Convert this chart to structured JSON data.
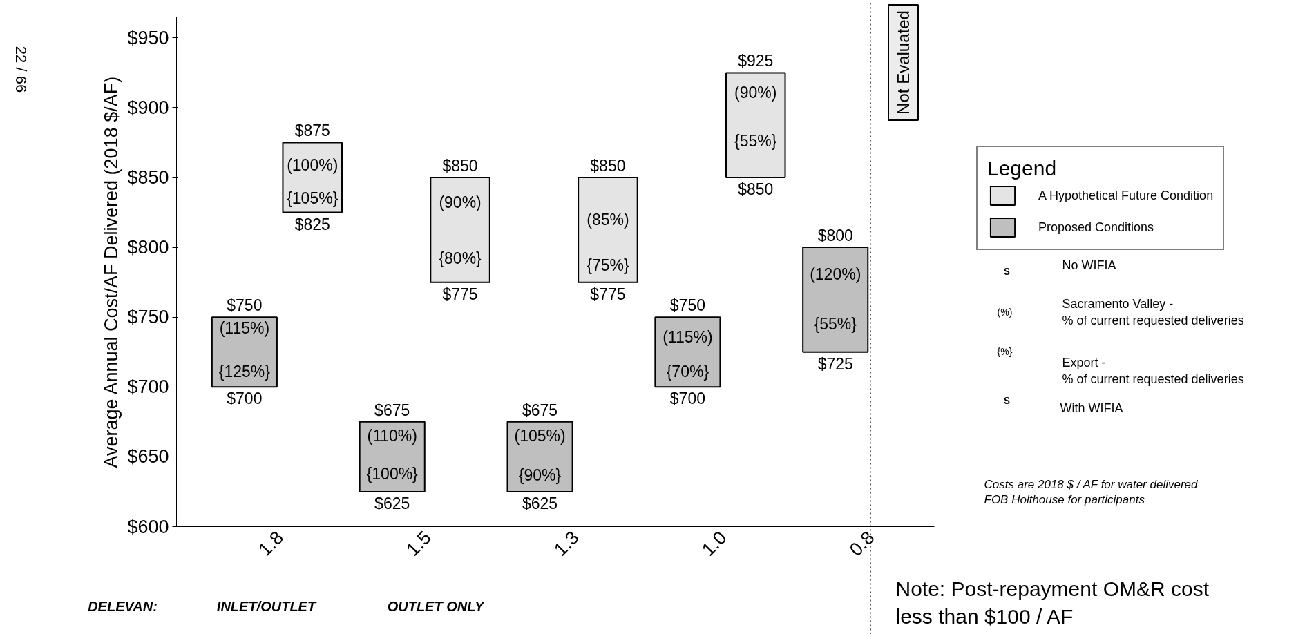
{
  "chart_data": {
    "type": "bar",
    "ylabel": "Average Annual Cost/AF Delivered (2018 $/AF)",
    "legend_title": "Legend",
    "categories": [
      "1.8",
      "1.5",
      "1.3",
      "1.0",
      "0.8"
    ],
    "series": [
      {
        "name": "A Hypothetical Future Condition",
        "color": "#e4e4e4",
        "base": [
          825,
          775,
          775,
          850,
          null
        ],
        "values": [
          50,
          75,
          75,
          75,
          null
        ]
      },
      {
        "name": "Proposed Conditions",
        "color": "#bfbfbf",
        "base": [
          700,
          625,
          625,
          700,
          725
        ],
        "values": [
          50,
          50,
          50,
          50,
          75
        ]
      }
    ],
    "ylim": [
      600,
      965
    ],
    "yticks": [
      {
        "value": 600,
        "label": "$600"
      },
      {
        "value": 650,
        "label": "$650"
      },
      {
        "value": 700,
        "label": "$700"
      },
      {
        "value": 750,
        "label": "$750"
      },
      {
        "value": 800,
        "label": "$800"
      },
      {
        "value": 850,
        "label": "$850"
      },
      {
        "value": 900,
        "label": "$900"
      },
      {
        "value": 950,
        "label": "$950"
      }
    ],
    "grid": "x",
    "legend": "right",
    "annotations": [
      {
        "text": "$750",
        "x": "1.8",
        "y": 750
      },
      {
        "text": "(115%)",
        "x": "1.8",
        "y": 742
      },
      {
        "text": "{125%}",
        "x": "1.8",
        "y": 711
      },
      {
        "text": "$700",
        "x": "1.8",
        "y": 700
      },
      {
        "text": "$875",
        "x": "1.8",
        "y": 875
      },
      {
        "text": "(100%)",
        "x": "1.8",
        "y": 859
      },
      {
        "text": "{105%}",
        "x": "1.8",
        "y": 835
      },
      {
        "text": "$825",
        "x": "1.8",
        "y": 825
      },
      {
        "text": "$675",
        "x": "1.5",
        "y": 675
      },
      {
        "text": "(110%)",
        "x": "1.5",
        "y": 665
      },
      {
        "text": "{100%}",
        "x": "1.5",
        "y": 638
      },
      {
        "text": "$625",
        "x": "1.5",
        "y": 625
      },
      {
        "text": "$850",
        "x": "1.5",
        "y": 850
      },
      {
        "text": "(90%)",
        "x": "1.5",
        "y": 832
      },
      {
        "text": "{80%}",
        "x": "1.5",
        "y": 792
      },
      {
        "text": "$775",
        "x": "1.5",
        "y": 775
      },
      {
        "text": "$675",
        "x": "1.3",
        "y": 675
      },
      {
        "text": "(105%)",
        "x": "1.3",
        "y": 665
      },
      {
        "text": "{90%}",
        "x": "1.3",
        "y": 637
      },
      {
        "text": "$625",
        "x": "1.3",
        "y": 625
      },
      {
        "text": "$850",
        "x": "1.3",
        "y": 850
      },
      {
        "text": "(85%)",
        "x": "1.3",
        "y": 820
      },
      {
        "text": "{75%}",
        "x": "1.3",
        "y": 787
      },
      {
        "text": "$775",
        "x": "1.3",
        "y": 775
      },
      {
        "text": "$750",
        "x": "1.0",
        "y": 750
      },
      {
        "text": "(115%)",
        "x": "1.0",
        "y": 736
      },
      {
        "text": "{70%}",
        "x": "1.0",
        "y": 711
      },
      {
        "text": "$700",
        "x": "1.0",
        "y": 700
      },
      {
        "text": "$925",
        "x": "1.0",
        "y": 925
      },
      {
        "text": "(90%)",
        "x": "1.0",
        "y": 911
      },
      {
        "text": "{55%}",
        "x": "1.0",
        "y": 876
      },
      {
        "text": "$850",
        "x": "1.0",
        "y": 850
      },
      {
        "text": "$800",
        "x": "0.8",
        "y": 800
      },
      {
        "text": "(120%)",
        "x": "0.8",
        "y": 781
      },
      {
        "text": "{55%}",
        "x": "0.8",
        "y": 745
      },
      {
        "text": "$725",
        "x": "0.8",
        "y": 725
      },
      "Not Evaluated",
      "22 / 66",
      "DELEVAN:",
      "INLET/OUTLET",
      "OUTLET ONLY",
      "No WIFIA",
      "$",
      "(%)",
      "Sacramento Valley -\n% of current requested deliveries",
      "{%}",
      "Export -\n% of current requested deliveries",
      "$",
      "With WIFIA",
      "Costs are 2018 $ / AF  for water delivered\nFOB Holthouse for participants",
      "Note: Post-repayment OM&R cost\nless than $100 / AF"
    ]
  }
}
